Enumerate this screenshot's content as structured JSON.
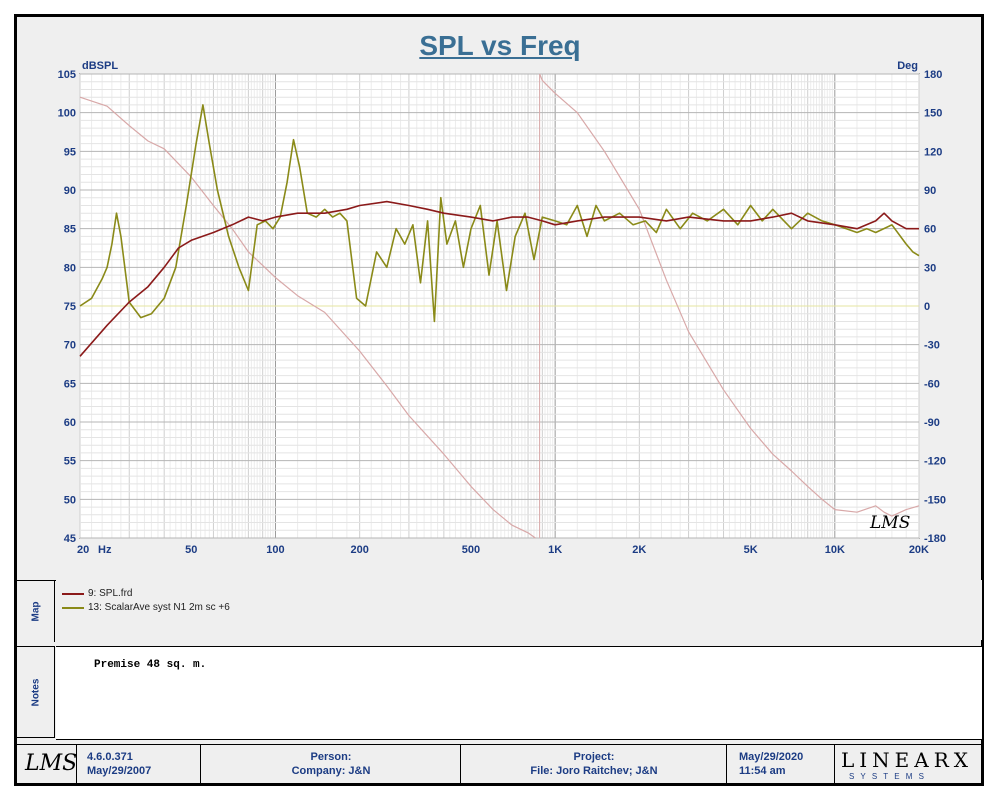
{
  "title": "SPL vs Freq",
  "chart_data": {
    "type": "line",
    "title": "SPL vs Freq",
    "xlabel": "Hz",
    "ylabel_left": "dBSPL",
    "ylabel_right": "Deg",
    "xscale": "log",
    "xlim": [
      20,
      20000
    ],
    "ylim_left": [
      45,
      105
    ],
    "ylim_right": [
      -180,
      180
    ],
    "x_ticks": [
      {
        "value": 20,
        "label": "20"
      },
      {
        "value": 50,
        "label": "50"
      },
      {
        "value": 100,
        "label": "100"
      },
      {
        "value": 200,
        "label": "200"
      },
      {
        "value": 500,
        "label": "500"
      },
      {
        "value": 1000,
        "label": "1K"
      },
      {
        "value": 2000,
        "label": "2K"
      },
      {
        "value": 5000,
        "label": "5K"
      },
      {
        "value": 10000,
        "label": "10K"
      },
      {
        "value": 20000,
        "label": "20K"
      }
    ],
    "x_unit_label": "Hz",
    "y_left_ticks": [
      105,
      100,
      95,
      90,
      85,
      80,
      75,
      70,
      65,
      60,
      55,
      50,
      45
    ],
    "y_right_ticks": [
      180,
      150,
      120,
      90,
      60,
      30,
      0,
      -30,
      -60,
      -90,
      -120,
      -150,
      -180
    ],
    "series": [
      {
        "name": "9: SPL.frd",
        "color": "#8b1a1a",
        "axis": "left",
        "x": [
          20,
          25,
          30,
          35,
          40,
          45,
          50,
          60,
          70,
          80,
          90,
          100,
          120,
          150,
          180,
          200,
          250,
          300,
          350,
          400,
          500,
          600,
          700,
          800,
          900,
          1000,
          1200,
          1500,
          2000,
          2500,
          3000,
          4000,
          5000,
          6000,
          7000,
          8000,
          10000,
          12000,
          14000,
          15000,
          16000,
          18000,
          20000
        ],
        "values": [
          68.5,
          72.5,
          75.5,
          77.5,
          80.0,
          82.5,
          83.5,
          84.5,
          85.5,
          86.5,
          86.0,
          86.5,
          87.0,
          87.0,
          87.5,
          88.0,
          88.5,
          88.0,
          87.5,
          87.0,
          86.5,
          86.0,
          86.5,
          86.5,
          86.0,
          85.5,
          86.0,
          86.5,
          86.5,
          86.0,
          86.5,
          86.0,
          86.0,
          86.5,
          87.0,
          86.0,
          85.5,
          85.0,
          86.0,
          87.0,
          86.0,
          85.0,
          85.0
        ]
      },
      {
        "name": "13: ScalarAve syst N1 2m sc +6",
        "color": "#8a8a18",
        "axis": "left",
        "x": [
          20,
          22,
          24,
          25,
          26,
          27,
          28,
          30,
          33,
          36,
          40,
          44,
          48,
          52,
          55,
          58,
          62,
          68,
          74,
          80,
          86,
          92,
          98,
          104,
          110,
          116,
          122,
          130,
          140,
          150,
          160,
          170,
          180,
          195,
          210,
          230,
          250,
          270,
          290,
          310,
          330,
          350,
          370,
          390,
          410,
          440,
          470,
          500,
          540,
          580,
          620,
          670,
          720,
          780,
          840,
          900,
          1000,
          1100,
          1200,
          1300,
          1400,
          1500,
          1700,
          1900,
          2100,
          2300,
          2500,
          2800,
          3100,
          3500,
          4000,
          4500,
          5000,
          5500,
          6000,
          7000,
          8000,
          9000,
          10000,
          11000,
          12000,
          13000,
          14000,
          16000,
          18000,
          19000,
          20000
        ],
        "values": [
          75.0,
          76.0,
          78.5,
          80.0,
          83.0,
          87.0,
          84.0,
          75.5,
          73.5,
          74.0,
          76.0,
          80.0,
          88.0,
          96.0,
          101.0,
          96.0,
          90.0,
          84.0,
          80.0,
          77.0,
          85.5,
          86.0,
          85.0,
          86.5,
          91.0,
          96.5,
          93.0,
          87.0,
          86.5,
          87.5,
          86.5,
          87.0,
          86.0,
          76.0,
          75.0,
          82.0,
          80.0,
          85.0,
          83.0,
          85.5,
          78.0,
          86.0,
          73.0,
          89.0,
          83.0,
          86.0,
          80.0,
          85.0,
          88.0,
          79.0,
          86.0,
          77.0,
          84.0,
          87.0,
          81.0,
          86.5,
          86.0,
          85.5,
          88.0,
          84.0,
          88.0,
          86.0,
          87.0,
          85.5,
          86.0,
          84.5,
          87.5,
          85.0,
          87.0,
          86.0,
          87.5,
          85.5,
          88.0,
          86.0,
          87.5,
          85.0,
          87.0,
          86.0,
          85.5,
          85.0,
          84.5,
          85.0,
          84.5,
          85.5,
          83.0,
          82.0,
          81.5
        ]
      },
      {
        "name": "Phase",
        "color": "#d8a8a8",
        "axis": "right",
        "x": [
          20,
          25,
          30,
          35,
          40,
          50,
          60,
          70,
          80,
          100,
          120,
          150,
          200,
          250,
          300,
          400,
          500,
          600,
          700,
          800,
          850,
          880,
          900,
          1000,
          1200,
          1500,
          2000,
          2500,
          3000,
          4000,
          5000,
          6000,
          7000,
          8000,
          9000,
          10000,
          12000,
          14000,
          15000,
          16000,
          18000,
          20000
        ],
        "values": [
          162,
          155,
          140,
          128,
          122,
          100,
          78,
          60,
          42,
          22,
          8,
          -5,
          -35,
          -62,
          -85,
          -115,
          -140,
          -158,
          -170,
          -176,
          -180,
          180,
          175,
          165,
          150,
          120,
          75,
          20,
          -20,
          -65,
          -95,
          -115,
          -128,
          -140,
          -150,
          -158,
          -160,
          -155,
          -160,
          -163,
          -158,
          -155
        ]
      }
    ],
    "legend": [
      "9: SPL.frd",
      "13: ScalarAve syst N1 2m sc +6"
    ],
    "annotations": [
      "LMS"
    ]
  },
  "map": {
    "label": "Map",
    "entries": [
      {
        "text": "9: SPL.frd",
        "color": "#8b1a1a"
      },
      {
        "text": "13: ScalarAve syst N1 2m sc +6",
        "color": "#8a8a18"
      }
    ]
  },
  "notes": {
    "label": "Notes",
    "text": "Premise 48 sq. m."
  },
  "footer": {
    "logo": "LMS",
    "version": "4.6.0.371",
    "version_date": "May/29/2007",
    "person_label": "Person:",
    "company": "Company:  J&N",
    "project_label": "Project:",
    "file": "File: Joro Raitchev; J&N",
    "date": "May/29/2020",
    "time": "11:54 am",
    "brand_top": "LINEARX",
    "brand_bottom": "S Y S T E M S"
  }
}
